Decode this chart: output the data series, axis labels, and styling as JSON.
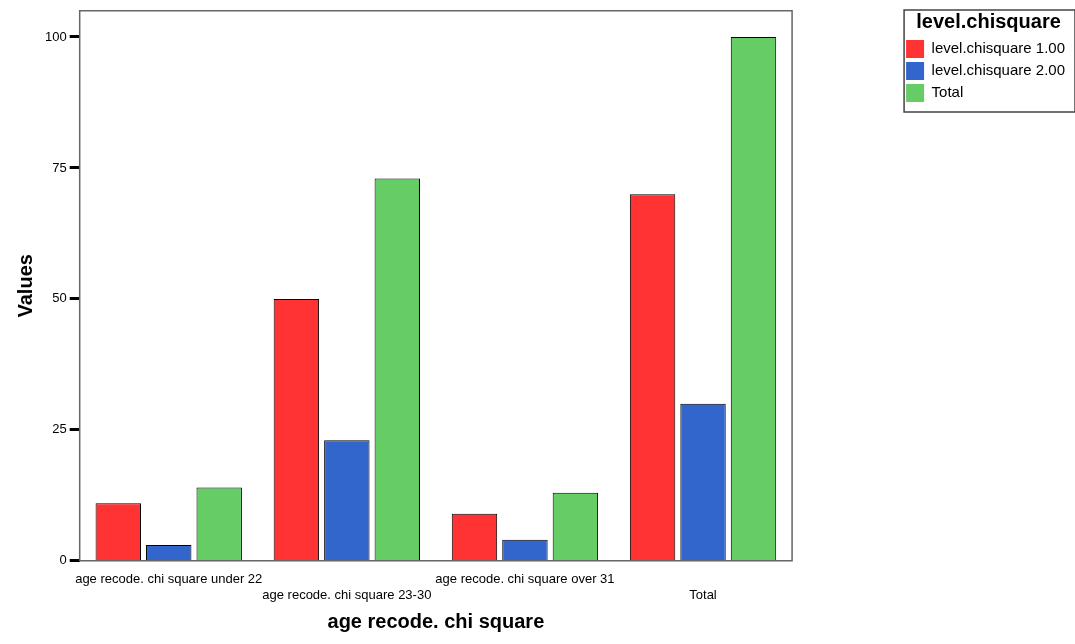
{
  "chart_data": {
    "type": "bar",
    "xlabel": "age recode. chi square",
    "ylabel": "Values",
    "legend_title": "level.chisquare",
    "categories": [
      "age recode. chi square under 22",
      "age recode. chi square 23-30",
      "age recode. chi square over 31",
      "Total"
    ],
    "series": [
      {
        "name": "level.chisquare 1.00",
        "color": "#ff3333",
        "values": [
          11,
          50,
          9,
          70
        ]
      },
      {
        "name": "level.chisquare 2.00",
        "color": "#3366cc",
        "values": [
          3,
          23,
          4,
          30
        ]
      },
      {
        "name": "Total",
        "color": "#66cc66",
        "values": [
          14,
          73,
          13,
          100
        ]
      }
    ],
    "ylim": [
      0,
      105
    ],
    "yticks": [
      0,
      25,
      50,
      75,
      100
    ],
    "grid": false,
    "legend": "top right"
  }
}
